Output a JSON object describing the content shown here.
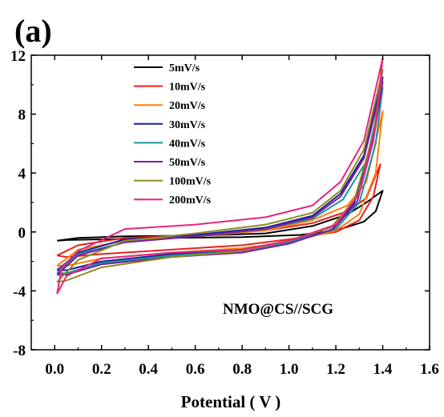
{
  "panel_label": "(a)",
  "chart_data": {
    "type": "line",
    "title": "",
    "xlabel": "Potential ( V )",
    "ylabel": "",
    "xlim": [
      -0.1,
      1.6
    ],
    "ylim": [
      -8,
      12
    ],
    "xticks": [
      "0.0",
      "0.2",
      "0.4",
      "0.6",
      "0.8",
      "1.0",
      "1.2",
      "1.4",
      "1.6"
    ],
    "yticks": [
      "12",
      "8",
      "4",
      "0",
      "-4",
      "-8"
    ],
    "legend": "top-left",
    "grid": false,
    "annotation": "NMO@CS//SCG",
    "series": [
      {
        "name": "5mV/s",
        "color": "#000000",
        "points": [
          [
            0.01,
            -0.6
          ],
          [
            0.1,
            -0.4
          ],
          [
            0.3,
            -0.3
          ],
          [
            0.6,
            -0.25
          ],
          [
            0.9,
            -0.1
          ],
          [
            1.1,
            0.4
          ],
          [
            1.25,
            1.2
          ],
          [
            1.33,
            2.0
          ],
          [
            1.4,
            2.8
          ],
          [
            1.37,
            1.4
          ],
          [
            1.32,
            0.7
          ],
          [
            1.2,
            0.1
          ],
          [
            1.05,
            -0.2
          ],
          [
            0.8,
            -0.35
          ],
          [
            0.5,
            -0.4
          ],
          [
            0.2,
            -0.5
          ],
          [
            0.05,
            -0.55
          ],
          [
            0.01,
            -0.6
          ]
        ]
      },
      {
        "name": "10mV/s",
        "color": "#e8201c",
        "points": [
          [
            0.01,
            -1.6
          ],
          [
            0.1,
            -0.9
          ],
          [
            0.3,
            -0.4
          ],
          [
            0.6,
            -0.2
          ],
          [
            0.9,
            0.1
          ],
          [
            1.1,
            0.6
          ],
          [
            1.25,
            1.4
          ],
          [
            1.33,
            2.3
          ],
          [
            1.39,
            4.6
          ],
          [
            1.36,
            2.4
          ],
          [
            1.3,
            0.8
          ],
          [
            1.2,
            0.0
          ],
          [
            1.0,
            -0.5
          ],
          [
            0.8,
            -0.9
          ],
          [
            0.5,
            -1.2
          ],
          [
            0.2,
            -1.5
          ],
          [
            0.05,
            -1.7
          ],
          [
            0.01,
            -1.6
          ]
        ]
      },
      {
        "name": "20mV/s",
        "color": "#ff7f0e",
        "points": [
          [
            0.01,
            -2.3
          ],
          [
            0.1,
            -1.2
          ],
          [
            0.3,
            -0.6
          ],
          [
            0.6,
            -0.3
          ],
          [
            0.9,
            0.1
          ],
          [
            1.1,
            0.8
          ],
          [
            1.25,
            1.8
          ],
          [
            1.33,
            3.4
          ],
          [
            1.4,
            8.2
          ],
          [
            1.37,
            4.0
          ],
          [
            1.3,
            1.2
          ],
          [
            1.2,
            0.1
          ],
          [
            1.0,
            -0.7
          ],
          [
            0.8,
            -1.1
          ],
          [
            0.5,
            -1.4
          ],
          [
            0.2,
            -1.8
          ],
          [
            0.05,
            -2.3
          ],
          [
            0.01,
            -2.3
          ]
        ]
      },
      {
        "name": "30mV/s",
        "color": "#1f1f9e",
        "points": [
          [
            0.01,
            -2.6
          ],
          [
            0.1,
            -1.4
          ],
          [
            0.3,
            -0.5
          ],
          [
            0.6,
            -0.2
          ],
          [
            0.9,
            0.3
          ],
          [
            1.1,
            1.1
          ],
          [
            1.22,
            2.6
          ],
          [
            1.32,
            5.2
          ],
          [
            1.4,
            10.5
          ],
          [
            1.36,
            6.5
          ],
          [
            1.28,
            2.0
          ],
          [
            1.18,
            0.1
          ],
          [
            1.0,
            -0.6
          ],
          [
            0.8,
            -1.2
          ],
          [
            0.5,
            -1.5
          ],
          [
            0.2,
            -2.0
          ],
          [
            0.05,
            -2.6
          ],
          [
            0.01,
            -2.6
          ]
        ]
      },
      {
        "name": "40mV/s",
        "color": "#17969a",
        "points": [
          [
            0.01,
            -2.8
          ],
          [
            0.1,
            -1.5
          ],
          [
            0.3,
            -0.7
          ],
          [
            0.6,
            -0.3
          ],
          [
            0.9,
            0.2
          ],
          [
            1.1,
            0.9
          ],
          [
            1.23,
            2.2
          ],
          [
            1.33,
            4.8
          ],
          [
            1.4,
            9.8
          ],
          [
            1.37,
            6.0
          ],
          [
            1.3,
            2.0
          ],
          [
            1.2,
            0.2
          ],
          [
            1.0,
            -0.7
          ],
          [
            0.8,
            -1.3
          ],
          [
            0.5,
            -1.6
          ],
          [
            0.2,
            -2.1
          ],
          [
            0.05,
            -2.8
          ],
          [
            0.01,
            -2.8
          ]
        ]
      },
      {
        "name": "50mV/s",
        "color": "#7b1fa2",
        "points": [
          [
            0.01,
            -2.9
          ],
          [
            0.1,
            -1.6
          ],
          [
            0.3,
            -0.7
          ],
          [
            0.6,
            -0.3
          ],
          [
            0.9,
            0.2
          ],
          [
            1.1,
            1.0
          ],
          [
            1.22,
            2.4
          ],
          [
            1.32,
            5.0
          ],
          [
            1.4,
            10.2
          ],
          [
            1.36,
            6.2
          ],
          [
            1.29,
            2.0
          ],
          [
            1.19,
            0.2
          ],
          [
            1.0,
            -0.8
          ],
          [
            0.8,
            -1.4
          ],
          [
            0.5,
            -1.7
          ],
          [
            0.2,
            -2.2
          ],
          [
            0.05,
            -2.9
          ],
          [
            0.01,
            -2.9
          ]
        ]
      },
      {
        "name": "100mV/s",
        "color": "#8b8c1c",
        "points": [
          [
            0.01,
            -3.4
          ],
          [
            0.1,
            -1.9
          ],
          [
            0.3,
            -0.6
          ],
          [
            0.6,
            -0.1
          ],
          [
            0.9,
            0.5
          ],
          [
            1.1,
            1.3
          ],
          [
            1.22,
            2.8
          ],
          [
            1.32,
            5.6
          ],
          [
            1.4,
            11.0
          ],
          [
            1.36,
            6.6
          ],
          [
            1.28,
            2.2
          ],
          [
            1.18,
            0.3
          ],
          [
            1.0,
            -0.6
          ],
          [
            0.8,
            -1.3
          ],
          [
            0.5,
            -1.7
          ],
          [
            0.2,
            -2.4
          ],
          [
            0.05,
            -3.3
          ],
          [
            0.01,
            -3.4
          ]
        ]
      },
      {
        "name": "200mV/s",
        "color": "#e8247e",
        "points": [
          [
            0.01,
            -4.2
          ],
          [
            0.03,
            -2.4
          ],
          [
            0.1,
            -1.3
          ],
          [
            0.3,
            0.2
          ],
          [
            0.6,
            0.5
          ],
          [
            0.9,
            1.0
          ],
          [
            1.1,
            1.8
          ],
          [
            1.22,
            3.4
          ],
          [
            1.32,
            6.2
          ],
          [
            1.4,
            11.8
          ],
          [
            1.37,
            7.2
          ],
          [
            1.3,
            2.6
          ],
          [
            1.2,
            0.5
          ],
          [
            1.0,
            -0.6
          ],
          [
            0.8,
            -1.2
          ],
          [
            0.5,
            -1.4
          ],
          [
            0.2,
            -1.8
          ],
          [
            0.05,
            -3.0
          ],
          [
            0.01,
            -4.2
          ]
        ]
      }
    ]
  }
}
